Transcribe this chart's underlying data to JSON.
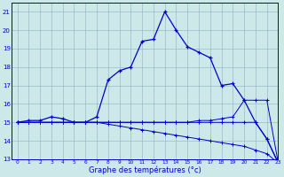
{
  "xlabel": "Graphe des températures (°c)",
  "x": [
    0,
    1,
    2,
    3,
    4,
    5,
    6,
    7,
    8,
    9,
    10,
    11,
    12,
    13,
    14,
    15,
    16,
    17,
    18,
    19,
    20,
    21,
    22,
    23
  ],
  "temp": [
    15.0,
    15.1,
    15.1,
    15.3,
    15.2,
    15.0,
    15.0,
    15.3,
    17.3,
    17.8,
    18.0,
    19.4,
    19.5,
    21.0,
    20.0,
    19.1,
    18.8,
    18.5,
    17.0,
    17.1,
    16.2,
    15.0,
    14.1,
    12.8
  ],
  "line1": [
    15.0,
    15.0,
    15.0,
    15.0,
    15.0,
    15.0,
    15.0,
    15.0,
    15.0,
    15.0,
    15.0,
    15.0,
    15.0,
    15.0,
    15.0,
    15.0,
    15.1,
    15.1,
    15.2,
    15.3,
    16.2,
    16.2,
    16.2,
    12.8
  ],
  "line2": [
    15.0,
    15.0,
    15.0,
    15.0,
    15.0,
    15.0,
    15.0,
    15.0,
    15.0,
    15.0,
    15.0,
    15.0,
    15.0,
    15.0,
    15.0,
    15.0,
    15.0,
    15.0,
    15.0,
    15.0,
    15.0,
    15.0,
    14.1,
    12.8
  ],
  "line3": [
    15.0,
    15.0,
    15.0,
    15.0,
    15.0,
    15.0,
    15.0,
    15.0,
    14.9,
    14.8,
    14.7,
    14.6,
    14.5,
    14.4,
    14.3,
    14.2,
    14.1,
    14.0,
    13.9,
    13.8,
    13.7,
    13.5,
    13.3,
    12.8
  ],
  "ylim": [
    13,
    21.5
  ],
  "xlim": [
    -0.5,
    23
  ],
  "yticks": [
    13,
    14,
    15,
    16,
    17,
    18,
    19,
    20,
    21
  ],
  "xticks": [
    0,
    1,
    2,
    3,
    4,
    5,
    6,
    7,
    8,
    9,
    10,
    11,
    12,
    13,
    14,
    15,
    16,
    17,
    18,
    19,
    20,
    21,
    22,
    23
  ],
  "line_color": "#0000cc",
  "bg_color": "#cce8e8",
  "grid_color": "#99bbcc"
}
